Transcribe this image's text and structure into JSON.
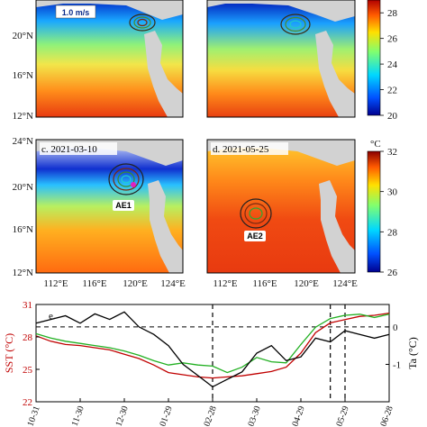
{
  "chart_data": [
    {
      "type": "heatmap",
      "panel": "a",
      "title": "",
      "x_ticks": [],
      "y_ticks": [
        "20°N",
        "16°N",
        "12°N"
      ],
      "colorbar": null,
      "annotations": [
        "1.0 m/s"
      ]
    },
    {
      "type": "heatmap",
      "panel": "b",
      "title": "",
      "x_ticks": [],
      "y_ticks": [],
      "colorbar": {
        "ticks": [
          28,
          26,
          24,
          22,
          20
        ],
        "range": [
          20,
          29
        ],
        "unit": ""
      },
      "annotations": []
    },
    {
      "type": "heatmap",
      "panel": "c",
      "title": "c. 2021-03-10",
      "x_ticks": [
        "112°E",
        "116°E",
        "120°E",
        "124°E"
      ],
      "y_ticks": [
        "24°N",
        "20°N",
        "16°N",
        "12°N"
      ],
      "colorbar": null,
      "annotations": [
        "AE1"
      ]
    },
    {
      "type": "heatmap",
      "panel": "d",
      "title": "d. 2021-05-25",
      "x_ticks": [
        "112°E",
        "116°E",
        "120°E",
        "124°E"
      ],
      "y_ticks": [],
      "colorbar": {
        "ticks": [
          32,
          30,
          28,
          26
        ],
        "range": [
          26,
          32
        ],
        "unit": "°C"
      },
      "annotations": [
        "AE2"
      ]
    },
    {
      "type": "line",
      "panel": "e",
      "title": "e.",
      "x_ticks": [
        "10-31",
        "11-30",
        "12-30",
        "01-29",
        "02-28",
        "03-30",
        "04-29",
        "05-29",
        "06-28"
      ],
      "xlim": [
        0,
        240
      ],
      "ylabel_left": "SST (°C)",
      "ylabel_right": "Ta (°C)",
      "yticks_left": [
        31,
        28,
        25,
        22
      ],
      "yticks_right": [
        0,
        -1
      ],
      "ylim_left": [
        22,
        31
      ],
      "ylim_right": [
        -2,
        0.6
      ],
      "vlines": [
        120,
        200,
        210
      ],
      "hline_right": 0,
      "series": [
        {
          "axis": "left",
          "color": "#c00000",
          "x": [
            0,
            10,
            20,
            30,
            40,
            50,
            60,
            70,
            80,
            90,
            100,
            110,
            120,
            130,
            140,
            150,
            160,
            170,
            180,
            190,
            200,
            210,
            220,
            230,
            240
          ],
          "y": [
            28.1,
            27.6,
            27.3,
            27.2,
            27.0,
            26.8,
            26.4,
            26.0,
            25.4,
            24.7,
            24.5,
            24.3,
            24.2,
            24.3,
            24.4,
            24.6,
            24.8,
            25.2,
            26.5,
            28.4,
            29.3,
            29.6,
            29.9,
            30.0,
            30.2
          ]
        },
        {
          "axis": "left",
          "color": "#22b022",
          "x": [
            0,
            10,
            20,
            30,
            40,
            50,
            60,
            70,
            80,
            90,
            100,
            110,
            120,
            130,
            140,
            150,
            160,
            170,
            180,
            190,
            200,
            210,
            220,
            230,
            240
          ],
          "y": [
            28.3,
            27.9,
            27.6,
            27.4,
            27.2,
            27.0,
            26.7,
            26.3,
            25.8,
            25.4,
            25.6,
            25.4,
            25.3,
            24.7,
            25.2,
            26.1,
            25.7,
            25.6,
            27.3,
            28.9,
            29.7,
            30.0,
            30.1,
            29.8,
            30.1
          ]
        },
        {
          "axis": "right",
          "color": "#000000",
          "x": [
            0,
            10,
            20,
            30,
            40,
            50,
            60,
            70,
            80,
            90,
            100,
            110,
            120,
            130,
            140,
            150,
            160,
            170,
            180,
            190,
            200,
            210,
            220,
            230,
            240
          ],
          "y": [
            0.1,
            0.2,
            0.3,
            0.1,
            0.35,
            0.2,
            0.4,
            0.0,
            -0.2,
            -0.5,
            -1.0,
            -1.3,
            -1.6,
            -1.4,
            -1.2,
            -0.7,
            -0.5,
            -0.9,
            -0.8,
            -0.3,
            -0.4,
            -0.1,
            -0.2,
            -0.3,
            -0.2
          ]
        }
      ]
    }
  ]
}
